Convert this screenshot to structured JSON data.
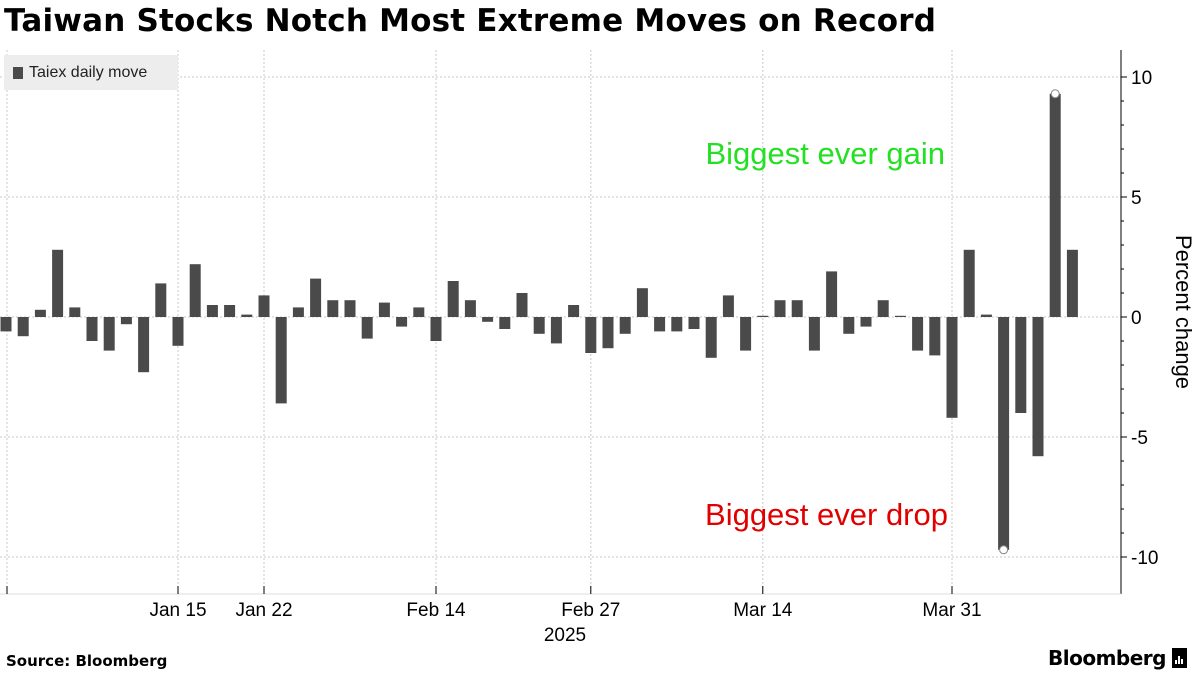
{
  "title": "Taiwan Stocks Notch Most Extreme Moves on Record",
  "source": "Source: Bloomberg",
  "brand": "Bloomberg",
  "colors": {
    "bar": "#4a4a4a",
    "gain": "#22e022",
    "drop": "#e00000",
    "grid": "#c8c8c8"
  },
  "chart_data": {
    "type": "bar",
    "title": "Taiwan Stocks Notch Most Extreme Moves on Record",
    "ylabel": "Percent change",
    "xlabel": "",
    "x_sublabel": "2025",
    "ylim": [
      -10.5,
      11.2
    ],
    "yticks": [
      10,
      5,
      0,
      -5,
      -10
    ],
    "ytick_labels": [
      "10",
      "5",
      "0",
      "-5",
      "-10"
    ],
    "x_ticks": [
      {
        "label": "Jan 15",
        "index": 10
      },
      {
        "label": "Jan 22",
        "index": 15
      },
      {
        "label": "Feb 14",
        "index": 25
      },
      {
        "label": "Feb 27",
        "index": 34
      },
      {
        "label": "Mar 14",
        "index": 44
      },
      {
        "label": "Mar 31",
        "index": 55
      }
    ],
    "legend": {
      "position": "top-left",
      "entries": [
        "Taiex daily move"
      ]
    },
    "grid": true,
    "series": [
      {
        "name": "Taiex daily move",
        "values": [
          -0.6,
          -0.8,
          0.3,
          2.8,
          0.4,
          -1.0,
          -1.4,
          -0.3,
          -2.3,
          1.4,
          -1.2,
          2.2,
          0.5,
          0.5,
          0.1,
          0.9,
          -3.6,
          0.4,
          1.6,
          0.7,
          0.7,
          -0.9,
          0.6,
          -0.4,
          0.4,
          -1.0,
          1.5,
          0.7,
          -0.2,
          -0.5,
          1.0,
          -0.7,
          -1.1,
          0.5,
          -1.5,
          -1.3,
          -0.7,
          1.2,
          -0.6,
          -0.6,
          -0.5,
          -1.7,
          0.9,
          -1.4,
          0.05,
          0.7,
          0.7,
          -1.4,
          1.9,
          -0.7,
          -0.4,
          0.7,
          0.05,
          -1.4,
          -1.6,
          -4.2,
          2.8,
          0.1,
          -9.7,
          -4.0,
          -5.8,
          9.3,
          2.8
        ]
      }
    ],
    "annotations": [
      {
        "text": "Biggest ever gain",
        "type": "gain",
        "index": 61
      },
      {
        "text": "Biggest ever drop",
        "type": "drop",
        "index": 58
      }
    ]
  }
}
